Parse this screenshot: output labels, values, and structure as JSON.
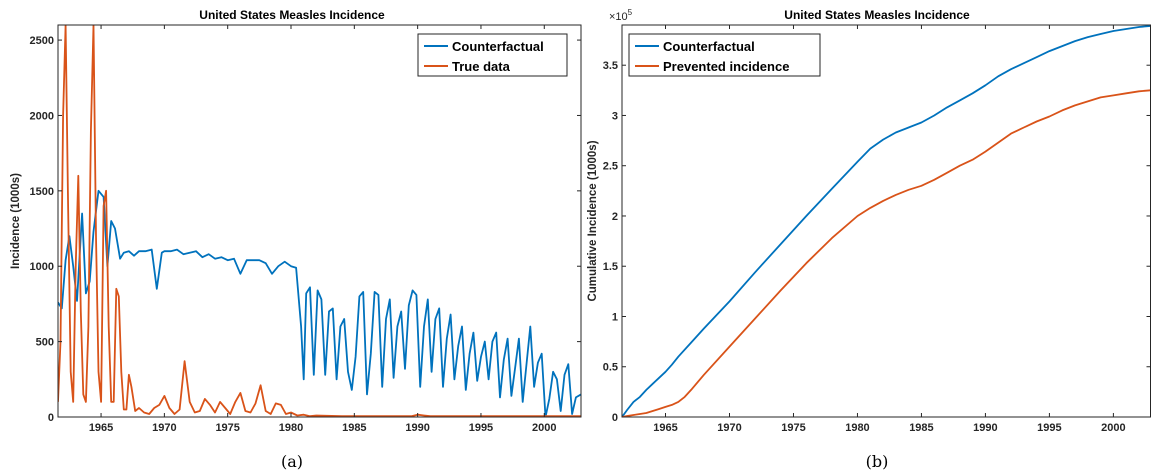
{
  "colors": {
    "counterfactual": "#0072BD",
    "true_data": "#D95319",
    "prevented": "#D95319"
  },
  "chart_data": [
    {
      "type": "line",
      "caption": "(a)",
      "title": "United States Measles Incidence",
      "xlabel": "",
      "ylabel": "Incidence (1000s)",
      "xlim": [
        1961.6,
        2002.9
      ],
      "ylim": [
        0,
        2600
      ],
      "xticks": [
        1965,
        1970,
        1975,
        1980,
        1985,
        1990,
        1995,
        2000
      ],
      "yticks": [
        0,
        500,
        1000,
        1500,
        2000,
        2500
      ],
      "legend": {
        "placement": "top-right",
        "entries": [
          "Counterfactual",
          "True data"
        ]
      },
      "series": [
        {
          "name": "Counterfactual",
          "x": [
            1961.6,
            1961.9,
            1962.2,
            1962.5,
            1962.8,
            1963.1,
            1963.5,
            1963.8,
            1964.1,
            1964.4,
            1964.8,
            1965.2,
            1965.5,
            1965.8,
            1966.1,
            1966.5,
            1966.8,
            1967.2,
            1967.6,
            1968.0,
            1968.5,
            1969.0,
            1969.4,
            1969.8,
            1970.0,
            1970.5,
            1971.0,
            1971.5,
            1972.0,
            1972.5,
            1973.0,
            1973.5,
            1974.0,
            1974.5,
            1975.0,
            1975.5,
            1976.0,
            1976.5,
            1977.0,
            1977.5,
            1978.0,
            1978.5,
            1979.0,
            1979.5,
            1980.0,
            1980.4,
            1980.8,
            1981.0,
            1981.2,
            1981.5,
            1981.8,
            1982.1,
            1982.4,
            1982.7,
            1983.0,
            1983.3,
            1983.6,
            1983.9,
            1984.2,
            1984.5,
            1984.8,
            1985.1,
            1985.4,
            1985.7,
            1986.0,
            1986.3,
            1986.6,
            1986.9,
            1987.2,
            1987.5,
            1987.8,
            1988.1,
            1988.4,
            1988.7,
            1989.0,
            1989.3,
            1989.6,
            1989.9,
            1990.2,
            1990.5,
            1990.8,
            1991.1,
            1991.4,
            1991.7,
            1992.0,
            1992.3,
            1992.6,
            1992.9,
            1993.2,
            1993.5,
            1993.8,
            1994.1,
            1994.4,
            1994.7,
            1995.0,
            1995.3,
            1995.6,
            1995.9,
            1996.2,
            1996.5,
            1996.8,
            1997.1,
            1997.4,
            1997.7,
            1998.0,
            1998.3,
            1998.6,
            1998.9,
            1999.2,
            1999.5,
            1999.8,
            2000.1,
            2000.4,
            2000.7,
            2001.0,
            2001.3,
            2001.6,
            2001.9,
            2002.2,
            2002.5,
            2002.9
          ],
          "values": [
            760,
            720,
            1040,
            1200,
            1000,
            770,
            1350,
            820,
            900,
            1230,
            1500,
            1460,
            1000,
            1300,
            1250,
            1050,
            1090,
            1100,
            1070,
            1100,
            1100,
            1110,
            850,
            1090,
            1100,
            1100,
            1110,
            1080,
            1090,
            1100,
            1060,
            1080,
            1050,
            1060,
            1040,
            1050,
            950,
            1040,
            1040,
            1040,
            1020,
            950,
            1000,
            1030,
            1000,
            990,
            600,
            250,
            820,
            860,
            280,
            840,
            780,
            280,
            700,
            720,
            250,
            600,
            650,
            300,
            180,
            400,
            800,
            830,
            150,
            420,
            830,
            810,
            200,
            650,
            780,
            260,
            600,
            700,
            320,
            740,
            840,
            810,
            200,
            600,
            780,
            300,
            650,
            720,
            200,
            520,
            680,
            250,
            470,
            600,
            180,
            420,
            560,
            240,
            400,
            500,
            250,
            500,
            560,
            130,
            380,
            520,
            140,
            330,
            520,
            100,
            350,
            600,
            200,
            360,
            420,
            0,
            120,
            300,
            250,
            40,
            280,
            350,
            20,
            130,
            150
          ]
        },
        {
          "name": "True data",
          "x": [
            1961.6,
            1961.8,
            1962.0,
            1962.2,
            1962.4,
            1962.6,
            1962.8,
            1963.0,
            1963.2,
            1963.4,
            1963.6,
            1963.8,
            1964.0,
            1964.2,
            1964.4,
            1964.6,
            1964.8,
            1965.0,
            1965.2,
            1965.4,
            1965.6,
            1965.8,
            1966.0,
            1966.2,
            1966.4,
            1966.6,
            1966.8,
            1967.0,
            1967.2,
            1967.4,
            1967.7,
            1968.0,
            1968.4,
            1968.8,
            1969.2,
            1969.6,
            1970.0,
            1970.4,
            1970.8,
            1971.2,
            1971.6,
            1972.0,
            1972.4,
            1972.8,
            1973.2,
            1973.6,
            1974.0,
            1974.4,
            1974.8,
            1975.2,
            1975.6,
            1976.0,
            1976.4,
            1976.8,
            1977.2,
            1977.6,
            1978.0,
            1978.4,
            1978.8,
            1979.2,
            1979.6,
            1980.0,
            1980.5,
            1981.0,
            1981.5,
            1982.0,
            1984.0,
            1986.0,
            1988.0,
            1989.5,
            1990.0,
            1990.5,
            1991.0,
            1992.0,
            1995.0,
            1998.0,
            2000.0,
            2002.9
          ],
          "values": [
            100,
            500,
            2000,
            2600,
            1400,
            300,
            100,
            1000,
            1600,
            700,
            150,
            100,
            600,
            1900,
            2600,
            1200,
            300,
            100,
            1400,
            1500,
            600,
            100,
            100,
            850,
            800,
            300,
            50,
            50,
            280,
            200,
            40,
            60,
            30,
            20,
            60,
            80,
            140,
            60,
            20,
            50,
            370,
            100,
            30,
            40,
            120,
            80,
            30,
            100,
            60,
            20,
            100,
            160,
            40,
            30,
            90,
            210,
            40,
            20,
            90,
            80,
            20,
            30,
            10,
            15,
            5,
            10,
            5,
            5,
            5,
            5,
            15,
            10,
            5,
            5,
            5,
            5,
            5,
            5
          ]
        }
      ]
    },
    {
      "type": "line",
      "caption": "(b)",
      "title": "United States Measles Incidence",
      "xlabel": "",
      "ylabel": "Cumulative Incidence (1000s)",
      "y_exponent": "×10",
      "y_exponent_power": "5",
      "xlim": [
        1961.6,
        2002.9
      ],
      "ylim": [
        0,
        3.9
      ],
      "xticks": [
        1965,
        1970,
        1975,
        1980,
        1985,
        1990,
        1995,
        2000
      ],
      "yticks": [
        0,
        0.5,
        1,
        1.5,
        2,
        2.5,
        3,
        3.5
      ],
      "legend": {
        "placement": "top-left",
        "entries": [
          "Counterfactual",
          "Prevented incidence"
        ]
      },
      "series": [
        {
          "name": "Counterfactual",
          "x": [
            1961.6,
            1962.0,
            1962.5,
            1963.0,
            1963.5,
            1964.0,
            1964.5,
            1965.0,
            1965.5,
            1966.0,
            1967.0,
            1968.0,
            1970.0,
            1972.0,
            1974.0,
            1976.0,
            1978.0,
            1980.0,
            1981.0,
            1982.0,
            1983.0,
            1984.0,
            1985.0,
            1986.0,
            1987.0,
            1988.0,
            1989.0,
            1990.0,
            1991.0,
            1992.0,
            1993.0,
            1994.0,
            1995.0,
            1996.0,
            1997.0,
            1998.0,
            1999.0,
            2000.0,
            2001.0,
            2002.0,
            2002.9
          ],
          "values": [
            0.0,
            0.07,
            0.15,
            0.2,
            0.27,
            0.33,
            0.39,
            0.45,
            0.52,
            0.6,
            0.74,
            0.88,
            1.15,
            1.44,
            1.72,
            2.0,
            2.27,
            2.54,
            2.67,
            2.76,
            2.83,
            2.88,
            2.93,
            3.0,
            3.08,
            3.15,
            3.22,
            3.3,
            3.39,
            3.46,
            3.52,
            3.58,
            3.64,
            3.69,
            3.74,
            3.78,
            3.81,
            3.84,
            3.86,
            3.88,
            3.89
          ]
        },
        {
          "name": "Prevented incidence",
          "x": [
            1961.6,
            1962.0,
            1962.5,
            1963.0,
            1963.5,
            1964.0,
            1964.5,
            1965.0,
            1965.5,
            1966.0,
            1966.5,
            1967.0,
            1968.0,
            1970.0,
            1972.0,
            1974.0,
            1976.0,
            1978.0,
            1980.0,
            1981.0,
            1982.0,
            1983.0,
            1984.0,
            1985.0,
            1986.0,
            1987.0,
            1988.0,
            1989.0,
            1990.0,
            1991.0,
            1992.0,
            1993.0,
            1994.0,
            1995.0,
            1996.0,
            1997.0,
            1998.0,
            1999.0,
            2000.0,
            2001.0,
            2002.0,
            2002.9
          ],
          "values": [
            0.0,
            0.01,
            0.02,
            0.03,
            0.04,
            0.06,
            0.08,
            0.1,
            0.12,
            0.15,
            0.2,
            0.27,
            0.42,
            0.7,
            0.98,
            1.26,
            1.53,
            1.78,
            2.0,
            2.08,
            2.15,
            2.21,
            2.26,
            2.3,
            2.36,
            2.43,
            2.5,
            2.56,
            2.64,
            2.73,
            2.82,
            2.88,
            2.94,
            2.99,
            3.05,
            3.1,
            3.14,
            3.18,
            3.2,
            3.22,
            3.24,
            3.25
          ]
        }
      ]
    }
  ]
}
